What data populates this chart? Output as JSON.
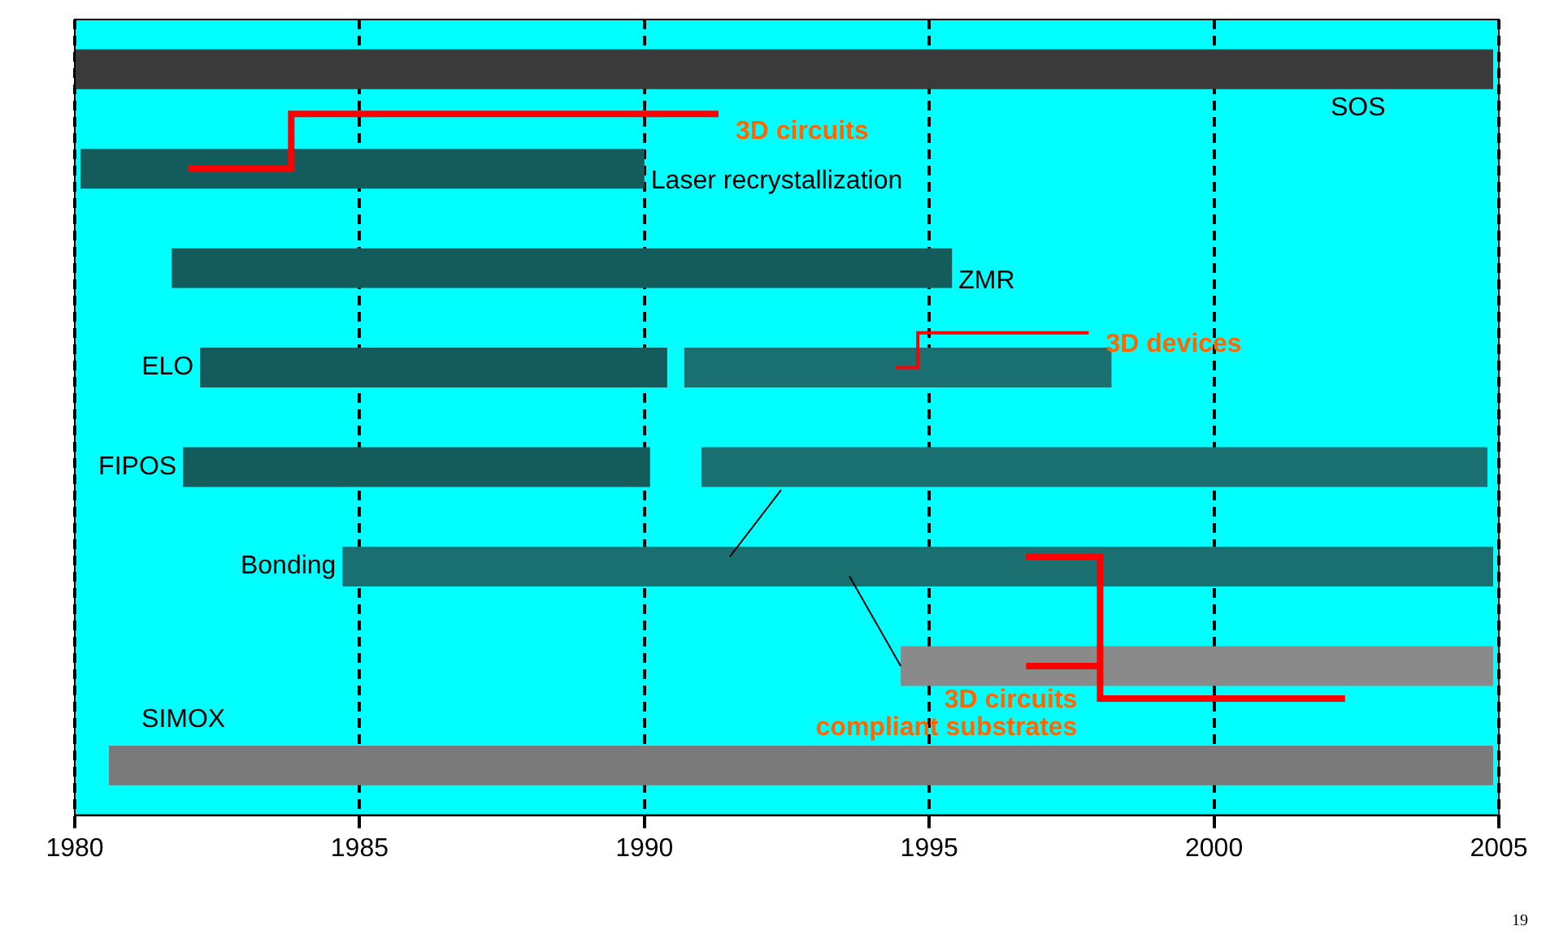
{
  "chart_data": {
    "type": "bar",
    "orientation": "horizontal",
    "categories": [
      "SOS",
      "Laser recrystallization",
      "ZMR",
      "ELO",
      "FIPOS",
      "Bonding",
      null,
      "SIMOX"
    ],
    "series": [
      {
        "colors": [
          "#3a3a3a",
          "#145c5c",
          "#145c5c",
          "#145c5c",
          "#145c5c",
          "#1a7070",
          "#8a8a8a",
          "#7a7a7a"
        ],
        "base": [
          1980,
          1980.1,
          1981.7,
          1982.2,
          1981.9,
          1984.7,
          1994.5,
          1980.6
        ],
        "values": [
          24.9,
          9.9,
          13.7,
          8.2,
          8.2,
          20.2,
          10.4,
          24.3
        ]
      },
      {
        "color": "#1a7070",
        "base": [
          null,
          null,
          null,
          1990.7,
          1991,
          null,
          null,
          null
        ],
        "values": [
          null,
          null,
          null,
          7.5,
          13.8,
          null,
          null,
          null
        ]
      }
    ],
    "xlim": [
      1980,
      2005
    ],
    "xticks": [
      1980,
      1985,
      1990,
      1995,
      2000,
      2005
    ],
    "grid": "x",
    "legend": false,
    "tick_labels": "x",
    "annotations": [
      "3D circuits",
      "3D devices",
      "3D circuits\ncompliant substrates",
      "19"
    ]
  }
}
